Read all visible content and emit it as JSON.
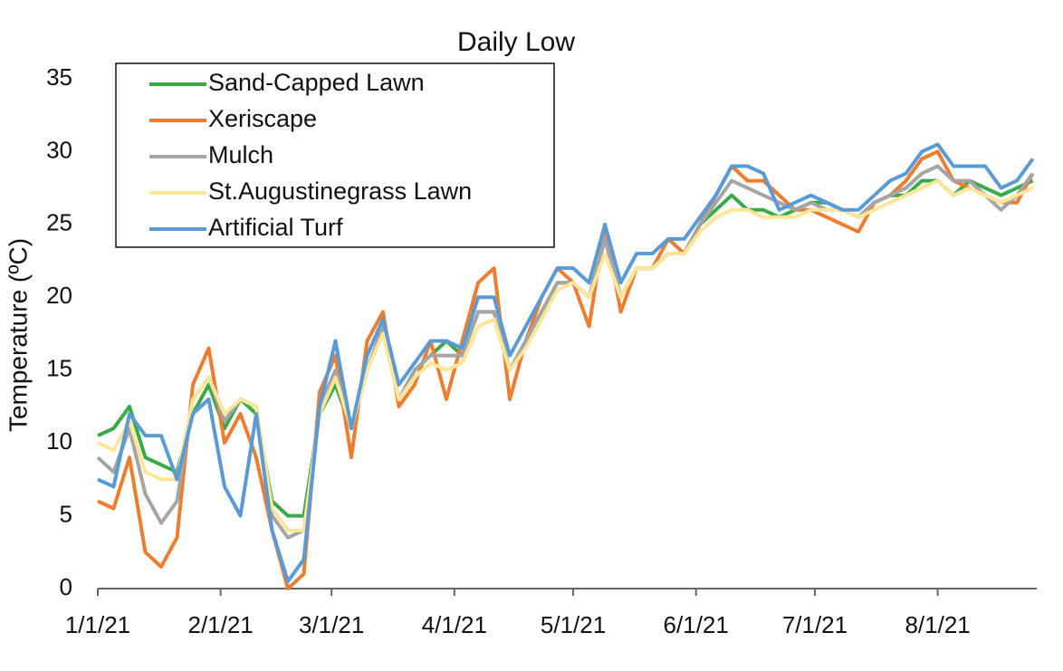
{
  "chart_data": {
    "type": "line",
    "title": "Daily Low",
    "y_label": "Temperature (ºC)",
    "x": [
      "1/1/21",
      "1/5/21",
      "1/9/21",
      "1/13/21",
      "1/17/21",
      "1/21/21",
      "1/25/21",
      "1/29/21",
      "2/2/21",
      "2/6/21",
      "2/10/21",
      "2/14/21",
      "2/18/21",
      "2/22/21",
      "2/26/21",
      "3/2/21",
      "3/6/21",
      "3/10/21",
      "3/14/21",
      "3/18/21",
      "3/22/21",
      "3/26/21",
      "3/30/21",
      "4/3/21",
      "4/7/21",
      "4/11/21",
      "4/15/21",
      "4/19/21",
      "4/23/21",
      "4/27/21",
      "5/1/21",
      "5/5/21",
      "5/9/21",
      "5/13/21",
      "5/17/21",
      "5/21/21",
      "5/25/21",
      "5/29/21",
      "6/2/21",
      "6/6/21",
      "6/10/21",
      "6/14/21",
      "6/18/21",
      "6/22/21",
      "6/26/21",
      "6/30/21",
      "7/4/21",
      "7/8/21",
      "7/12/21",
      "7/16/21",
      "7/20/21",
      "7/24/21",
      "7/28/21",
      "8/1/21",
      "8/5/21",
      "8/9/21",
      "8/13/21",
      "8/17/21",
      "8/21/21",
      "8/25/21"
    ],
    "series": [
      {
        "name": "Sand-Capped Lawn",
        "color": "#3aaa48",
        "values": [
          10.5,
          11,
          12.5,
          9,
          8.5,
          8,
          12,
          14,
          11,
          13,
          12,
          6,
          5,
          5,
          12,
          14,
          11,
          15,
          18,
          13,
          15,
          16,
          17,
          16,
          19,
          19,
          15,
          17,
          19,
          21,
          21,
          20,
          24,
          20,
          22,
          22,
          23,
          23,
          25,
          26,
          27,
          26,
          26,
          25.5,
          26,
          26.5,
          26.5,
          26,
          25.5,
          26.5,
          27,
          27,
          28,
          28,
          27,
          28,
          27.5,
          27,
          27.5,
          28
        ]
      },
      {
        "name": "Xeriscape",
        "color": "#ed7d31",
        "values": [
          6,
          5.5,
          9,
          2.5,
          1.5,
          3.5,
          14,
          16.5,
          10,
          12,
          9,
          4,
          0,
          1,
          13.5,
          16,
          9,
          17,
          19,
          12.5,
          14,
          17,
          13,
          17,
          21,
          22,
          13,
          17,
          20,
          22,
          21,
          18,
          25,
          19,
          22,
          22,
          24,
          23,
          25,
          27,
          29,
          28,
          28,
          27,
          26,
          26,
          25.5,
          25,
          24.5,
          26.5,
          27,
          28,
          29.5,
          30,
          28,
          27.5,
          27,
          26.5,
          26.5,
          28.5
        ]
      },
      {
        "name": "Mulch",
        "color": "#a5a5a5",
        "values": [
          9,
          8,
          11,
          6.5,
          4.5,
          6,
          13,
          14.5,
          11.5,
          13,
          12.5,
          5,
          3.5,
          4,
          12.5,
          15,
          11,
          15,
          18,
          13,
          15,
          16,
          16,
          16,
          19,
          19,
          15,
          17,
          19,
          21,
          21,
          20,
          24,
          20,
          22,
          22,
          23,
          23,
          25,
          26.5,
          28,
          27.5,
          27,
          26.5,
          26,
          26.5,
          26,
          26,
          25.5,
          26.5,
          27,
          27.5,
          28.5,
          29,
          28,
          28,
          27,
          26,
          27,
          28.5
        ]
      },
      {
        "name": "St.Augustinegrass Lawn",
        "color": "#ffe699",
        "values": [
          10,
          9.5,
          11.5,
          8,
          7.5,
          7.5,
          13,
          14.5,
          12,
          13,
          12.5,
          5.5,
          4,
          4,
          12,
          14.5,
          11,
          15,
          17.5,
          13,
          14.5,
          15.5,
          15,
          15.5,
          18,
          18.5,
          15,
          16.5,
          18.5,
          20.5,
          21,
          20,
          23,
          20,
          22,
          22,
          23,
          23,
          24.5,
          25.5,
          26,
          26,
          25.5,
          25.5,
          25.5,
          26,
          26,
          26,
          25.5,
          26,
          26.5,
          27,
          27.5,
          28,
          27,
          27.5,
          27,
          26.5,
          27,
          27.5
        ]
      },
      {
        "name": "Artificial Turf",
        "color": "#5b9bd5",
        "values": [
          7.5,
          7,
          12,
          10.5,
          10.5,
          7.5,
          12,
          13,
          7,
          5,
          12,
          4,
          0.5,
          2,
          12.5,
          17,
          11,
          16,
          18.5,
          14,
          15.5,
          17,
          17,
          16.5,
          20,
          20,
          16,
          18,
          20,
          22,
          22,
          21,
          25,
          21,
          23,
          23,
          24,
          24,
          25.5,
          27,
          29,
          29,
          28.5,
          26,
          26.5,
          27,
          26.5,
          26,
          26,
          27,
          28,
          28.5,
          30,
          30.5,
          29,
          29,
          29,
          27.5,
          28,
          29.5
        ]
      }
    ],
    "xlim": [
      "1/1/21",
      "8/26/21"
    ],
    "xticks": [
      "1/1/21",
      "2/1/21",
      "3/1/21",
      "4/1/21",
      "5/1/21",
      "6/1/21",
      "7/1/21",
      "8/1/21"
    ],
    "ylim": [
      0,
      35
    ],
    "yticks": [
      0,
      5,
      10,
      15,
      20,
      25,
      30,
      35
    ],
    "legend": "top-left"
  }
}
